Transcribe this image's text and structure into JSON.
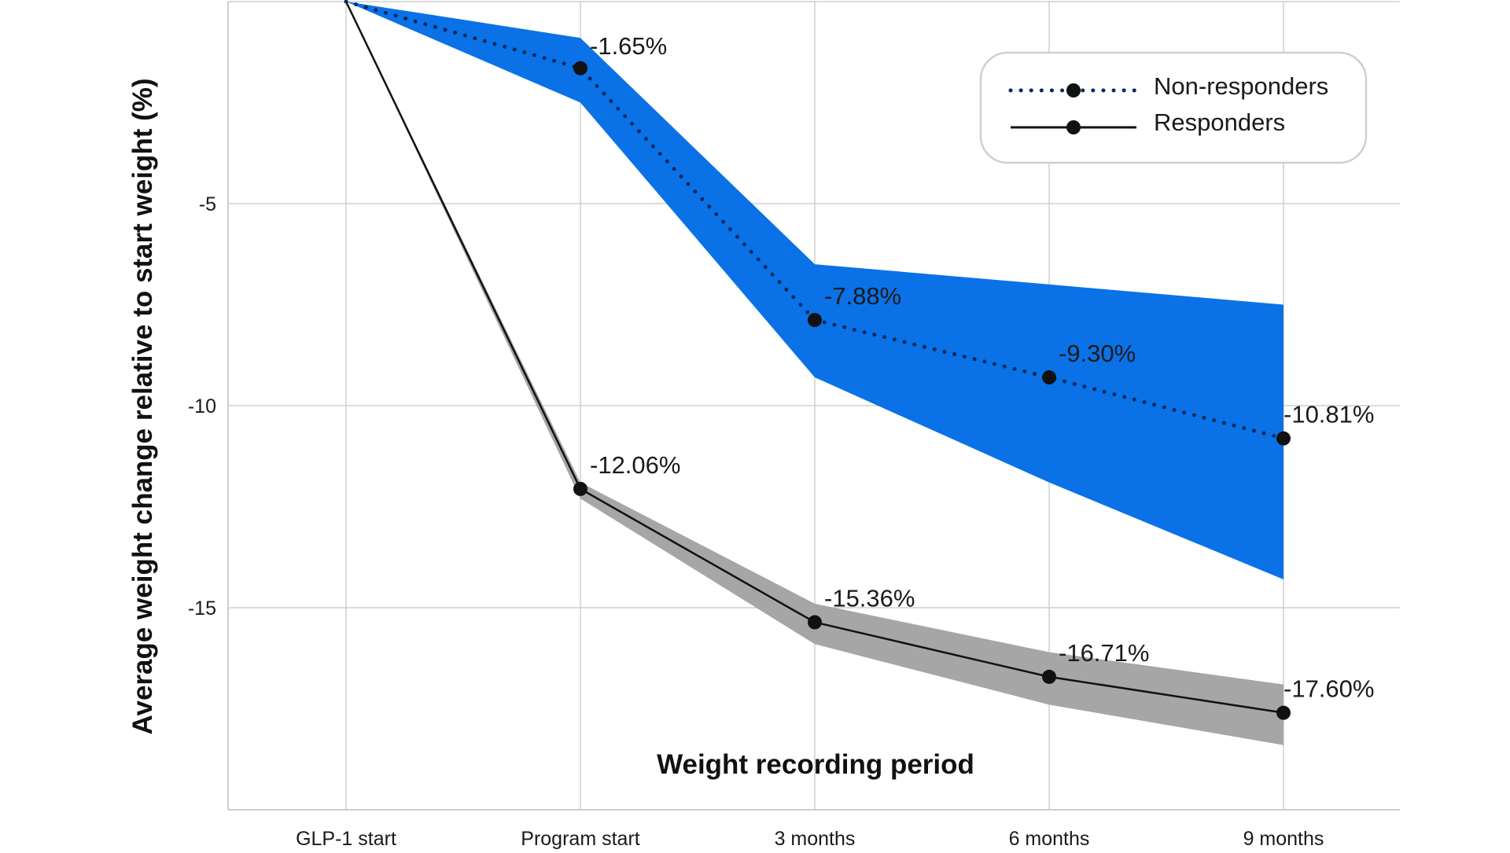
{
  "chart_data": {
    "type": "line",
    "title": "",
    "xlabel": "Weight recording period",
    "ylabel": "Average weight change relative to start weight (%)",
    "categories": [
      "GLP-1 start",
      "Program start",
      "3 months",
      "6 months",
      "9 months"
    ],
    "y_ticks": [
      "-5",
      "-10",
      "-15"
    ],
    "y_tick_values": [
      -5,
      -10,
      -15
    ],
    "ylim": [
      -20,
      0
    ],
    "grid": true,
    "legend_position": "top-right",
    "series": [
      {
        "name": "Non-responders",
        "style": "dotted",
        "color": "#0A2A5E",
        "band_color": "#0A72E6",
        "values": [
          0,
          -1.65,
          -7.88,
          -9.3,
          -10.81
        ],
        "band_lower": [
          0,
          -2.5,
          -9.3,
          -11.9,
          -14.3
        ],
        "band_upper": [
          0,
          -0.9,
          -6.5,
          -7.0,
          -7.5
        ],
        "labels": [
          "",
          "-1.65%",
          "-7.88%",
          "-9.30%",
          "-10.81%"
        ]
      },
      {
        "name": "Responders",
        "style": "solid",
        "color": "#111111",
        "band_color": "#A6A6A6",
        "values": [
          0,
          -12.06,
          -15.36,
          -16.71,
          -17.6
        ],
        "band_lower": [
          0,
          -12.3,
          -15.9,
          -17.4,
          -18.4
        ],
        "band_upper": [
          0,
          -11.9,
          -14.9,
          -16.1,
          -16.9
        ],
        "labels": [
          "",
          "-12.06%",
          "-15.36%",
          "-16.71%",
          "-17.60%"
        ]
      }
    ]
  }
}
